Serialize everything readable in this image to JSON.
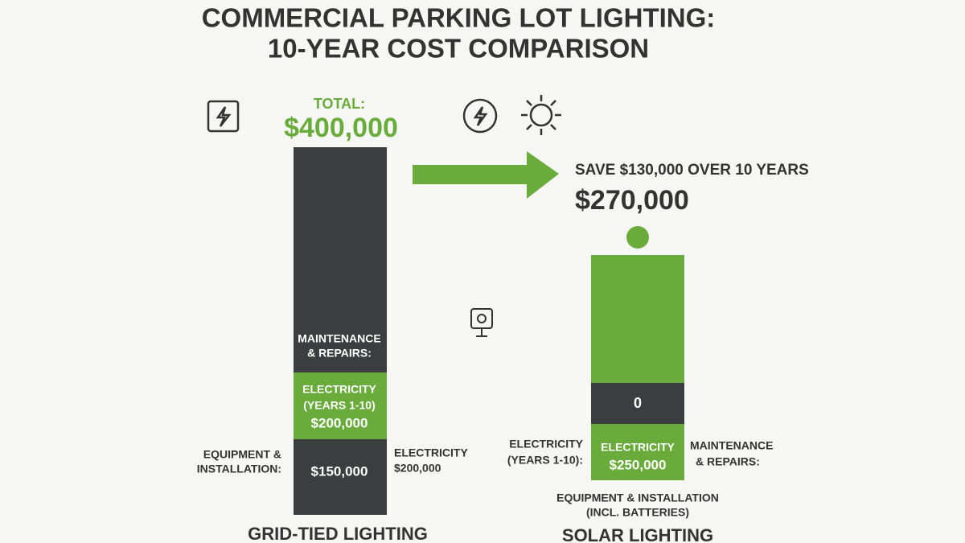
{
  "title": [
    "COMMERCIAL PARKING LOT LIGHTING:",
    "10-YEAR COST COMPARISON"
  ],
  "grid_tied": {
    "total_label": "TOTAL:",
    "total": "$400,000",
    "maintenance": [
      "MAINTENANCE",
      "& REPAIRS:"
    ],
    "electricity_segment": [
      "ELECTRICITY",
      "(YEARS 1-10)",
      "$200,000"
    ],
    "equipment_value": "$150,000",
    "equipment_label": [
      "EQUIPMENT &",
      "INSTALLATION:"
    ],
    "electricity_side": [
      "ELECTRICITY",
      "$200,000"
    ],
    "name": "GRID-TIED LIGHTING"
  },
  "savings": "SAVE $130,000 OVER 10 YEARS",
  "solar": {
    "total": "$270,000",
    "zero_segment": "0",
    "electricity_segment": [
      "ELECTRICITY",
      "$250,000"
    ],
    "electricity_side": [
      "ELECTRICITY",
      "(YEARS 1-10):"
    ],
    "maintenance_side": [
      "MAINTENANCE",
      "& REPAIRS:"
    ],
    "equipment_label": [
      "EQUIPMENT & INSTALLATION",
      "(INCL. BATTERIES)"
    ],
    "name": "SOLAR LIGHTING"
  }
}
